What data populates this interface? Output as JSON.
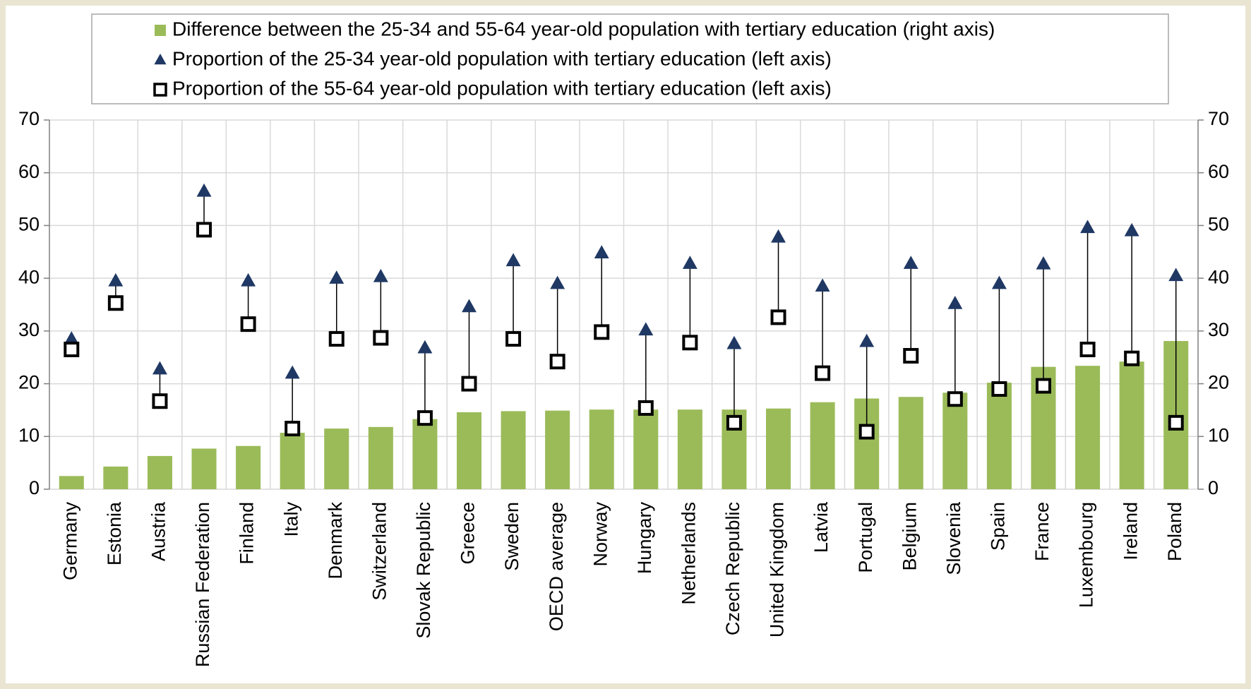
{
  "chart_data": {
    "type": "bar",
    "categories": [
      "Germany",
      "Estonia",
      "Austria",
      "Russian Federation",
      "Finland",
      "Italy",
      "Denmark",
      "Switzerland",
      "Slovak Republic",
      "Greece",
      "Sweden",
      "OECD average",
      "Norway",
      "Hungary",
      "Netherlands",
      "Czech Republic",
      "United Kingdom",
      "Latvia",
      "Portugal",
      "Belgium",
      "Slovenia",
      "Spain",
      "France",
      "Luxembourg",
      "Ireland",
      "Poland"
    ],
    "series": [
      {
        "name": "Difference between the 25-34 and 55-64 year-old population with tertiary education (right axis)",
        "type": "bar",
        "axis": "y2",
        "color": "#9bbb59",
        "values": [
          2.5,
          4.3,
          6.3,
          7.7,
          8.2,
          10.7,
          11.5,
          11.8,
          13.3,
          14.6,
          14.8,
          14.9,
          15.1,
          15.1,
          15.1,
          15.1,
          15.3,
          16.5,
          17.2,
          17.5,
          18.3,
          20.2,
          23.2,
          23.4,
          24.2,
          28.1
        ]
      },
      {
        "name": "Proportion of the 25-34 year-old population with tertiary education (left axis)",
        "type": "scatter",
        "marker": "triangle",
        "color": "#1f3864",
        "values": [
          28.5,
          39.5,
          22.8,
          56.5,
          39.5,
          22.0,
          40.0,
          40.3,
          26.8,
          34.6,
          43.3,
          39.0,
          44.8,
          30.2,
          42.8,
          27.6,
          47.8,
          38.5,
          28.0,
          42.8,
          35.2,
          39.0,
          42.7,
          49.6,
          49.0,
          40.5
        ]
      },
      {
        "name": "Proportion of the 55-64 year-old population with tertiary education (left axis)",
        "type": "scatter",
        "marker": "square",
        "color": "#000000",
        "values": [
          26.5,
          35.3,
          16.7,
          49.2,
          31.3,
          11.5,
          28.5,
          28.7,
          13.5,
          20.0,
          28.5,
          24.2,
          29.8,
          15.4,
          27.8,
          12.6,
          32.6,
          22.0,
          10.9,
          25.3,
          17.1,
          19.0,
          19.6,
          26.5,
          24.8,
          12.6
        ]
      }
    ],
    "ylim": [
      0,
      70
    ],
    "yticks": [
      0,
      10,
      20,
      30,
      40,
      50,
      60,
      70
    ],
    "y2lim": [
      0,
      70
    ],
    "y2ticks": [
      0,
      10,
      20,
      30,
      40,
      50,
      60,
      70
    ],
    "grid": true,
    "legend": "top"
  }
}
